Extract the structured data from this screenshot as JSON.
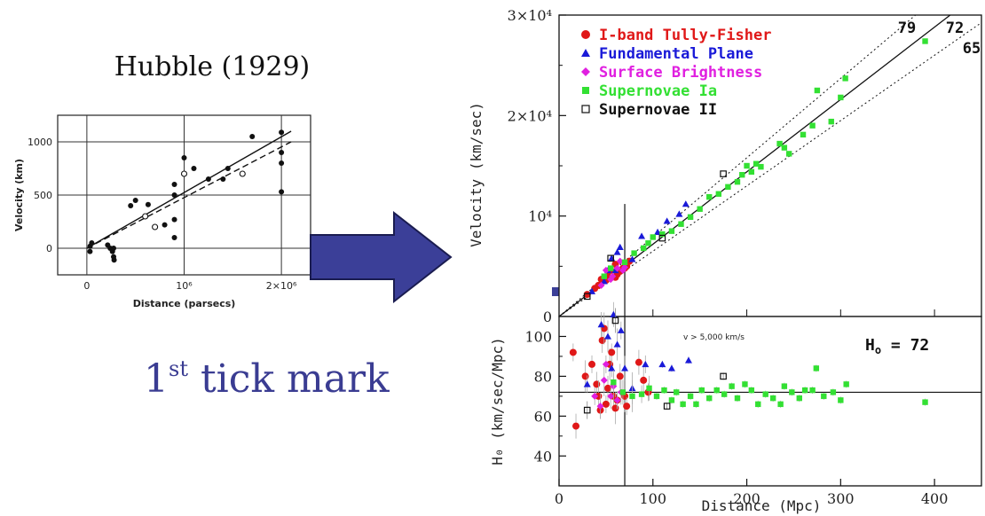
{
  "left_title": "Hubble (1929)",
  "caption": {
    "main": "1",
    "sup": "st",
    "rest": " tick mark"
  },
  "colors": {
    "caption": "#3a3c92",
    "arrow": "#3b3f98",
    "arrow_border": "#1a1c50",
    "red": "#e01818",
    "blue": "#1a1ad8",
    "magenta": "#e020e0",
    "green": "#33e033",
    "black": "#111111"
  },
  "chart_data": [
    {
      "id": "hubble-1929",
      "type": "scatter",
      "xlabel": "Distance (parsecs)",
      "ylabel": "Velocity (km)",
      "xlim": [
        -300000,
        2300000
      ],
      "ylim": [
        -250,
        1250
      ],
      "xticks": [
        {
          "v": 0,
          "label": "0"
        },
        {
          "v": 1000000,
          "label": "10⁶"
        },
        {
          "v": 2000000,
          "label": "2×10⁶"
        }
      ],
      "yticks": [
        {
          "v": 0,
          "label": "0"
        },
        {
          "v": 500,
          "label": "500"
        },
        {
          "v": 1000,
          "label": "1000"
        }
      ],
      "points_filled": [
        [
          32000,
          -30
        ],
        [
          34000,
          20
        ],
        [
          50000,
          50
        ],
        [
          214000,
          30
        ],
        [
          240000,
          0
        ],
        [
          263000,
          -30
        ],
        [
          275000,
          0
        ],
        [
          275000,
          -80
        ],
        [
          280000,
          -110
        ],
        [
          450000,
          400
        ],
        [
          500000,
          450
        ],
        [
          630000,
          410
        ],
        [
          800000,
          220
        ],
        [
          900000,
          270
        ],
        [
          900000,
          600
        ],
        [
          900000,
          500
        ],
        [
          900000,
          100
        ],
        [
          1000000,
          850
        ],
        [
          1100000,
          750
        ],
        [
          1250000,
          650
        ],
        [
          1400000,
          650
        ],
        [
          1450000,
          750
        ],
        [
          1700000,
          1050
        ],
        [
          2000000,
          900
        ],
        [
          2000000,
          1090
        ],
        [
          2000000,
          800
        ],
        [
          2000000,
          530
        ]
      ],
      "points_open": [
        [
          600000,
          300
        ],
        [
          700000,
          200
        ],
        [
          1000000,
          700
        ],
        [
          1600000,
          700
        ]
      ],
      "fits": [
        {
          "style": "solid",
          "x": [
            0,
            2100000
          ],
          "y": [
            0,
            1100
          ]
        },
        {
          "style": "dashed",
          "x": [
            0,
            2100000
          ],
          "y": [
            0,
            1000
          ]
        }
      ]
    },
    {
      "id": "velocity-distance",
      "type": "scatter",
      "ylabel": "Velocity (km/sec)",
      "xlim": [
        0,
        450
      ],
      "ylim": [
        0,
        30000
      ],
      "yticks": [
        {
          "v": 0,
          "label": "0"
        },
        {
          "v": 10000,
          "label": "10⁴"
        },
        {
          "v": 20000,
          "label": "2×10⁴"
        },
        {
          "v": 30000,
          "label": "3×10⁴"
        }
      ],
      "vline": 70,
      "legend": [
        {
          "label": "I-band Tully-Fisher",
          "marker": "circle",
          "color": "#e01818"
        },
        {
          "label": "Fundamental Plane",
          "marker": "triangle",
          "color": "#1a1ad8"
        },
        {
          "label": "Surface Brightness",
          "marker": "diamond",
          "color": "#e020e0"
        },
        {
          "label": "Supernovae Ia",
          "marker": "square",
          "color": "#33e033"
        },
        {
          "label": "Supernovae II",
          "marker": "open-square",
          "color": "#111111"
        }
      ],
      "lines": [
        {
          "style": "solid",
          "label": "72",
          "slope": 72
        },
        {
          "style": "dotted",
          "label": "79",
          "slope": 79
        },
        {
          "style": "dotted",
          "label": "65",
          "slope": 65
        }
      ],
      "series": [
        {
          "name": "I-band Tully-Fisher",
          "points": [
            [
              30,
              2200
            ],
            [
              38,
              2800
            ],
            [
              42,
              3100
            ],
            [
              45,
              3700
            ],
            [
              50,
              3600
            ],
            [
              52,
              4000
            ],
            [
              55,
              4600
            ],
            [
              60,
              5200
            ],
            [
              60,
              3900
            ],
            [
              62,
              4200
            ],
            [
              65,
              4500
            ],
            [
              68,
              4800
            ],
            [
              70,
              4800
            ],
            [
              72,
              5000
            ],
            [
              75,
              5500
            ]
          ]
        },
        {
          "name": "Fundamental Plane",
          "points": [
            [
              35,
              2500
            ],
            [
              48,
              3500
            ],
            [
              52,
              4600
            ],
            [
              56,
              5800
            ],
            [
              60,
              4600
            ],
            [
              62,
              6400
            ],
            [
              65,
              6900
            ],
            [
              78,
              5700
            ],
            [
              88,
              8000
            ],
            [
              105,
              8400
            ],
            [
              115,
              9500
            ],
            [
              128,
              10200
            ],
            [
              135,
              11200
            ]
          ]
        },
        {
          "name": "Surface Brightness",
          "points": [
            [
              45,
              3100
            ],
            [
              50,
              4600
            ],
            [
              55,
              3700
            ],
            [
              57,
              4000
            ],
            [
              62,
              4800
            ],
            [
              65,
              5500
            ],
            [
              68,
              4600
            ],
            [
              70,
              4900
            ]
          ]
        },
        {
          "name": "Supernovae Ia",
          "points": [
            [
              48,
              4000
            ],
            [
              55,
              4800
            ],
            [
              70,
              5400
            ],
            [
              80,
              6300
            ],
            [
              90,
              6800
            ],
            [
              95,
              7300
            ],
            [
              100,
              7900
            ],
            [
              110,
              8200
            ],
            [
              120,
              8500
            ],
            [
              130,
              9200
            ],
            [
              140,
              9900
            ],
            [
              150,
              10700
            ],
            [
              160,
              11900
            ],
            [
              170,
              12200
            ],
            [
              180,
              12900
            ],
            [
              190,
              13400
            ],
            [
              195,
              14100
            ],
            [
              200,
              15000
            ],
            [
              205,
              14400
            ],
            [
              210,
              15200
            ],
            [
              215,
              14900
            ],
            [
              235,
              17200
            ],
            [
              240,
              16800
            ],
            [
              245,
              16200
            ],
            [
              260,
              18100
            ],
            [
              270,
              19000
            ],
            [
              275,
              22500
            ],
            [
              290,
              19400
            ],
            [
              300,
              21800
            ],
            [
              305,
              23700
            ],
            [
              390,
              27400
            ]
          ]
        },
        {
          "name": "Supernovae II",
          "points": [
            [
              30,
              2000
            ],
            [
              55,
              5800
            ],
            [
              110,
              7800
            ],
            [
              175,
              14200
            ]
          ]
        }
      ]
    },
    {
      "id": "h0-distance",
      "type": "scatter",
      "xlabel": "Distance (Mpc)",
      "ylabel": "H₀ (km/sec/Mpc)",
      "xlim": [
        0,
        450
      ],
      "ylim": [
        25,
        110
      ],
      "xticks": [
        {
          "v": 0,
          "label": "0"
        },
        {
          "v": 100,
          "label": "100"
        },
        {
          "v": 200,
          "label": "200"
        },
        {
          "v": 300,
          "label": "300"
        },
        {
          "v": 400,
          "label": "400"
        }
      ],
      "yticks": [
        {
          "v": 40,
          "label": "40"
        },
        {
          "v": 60,
          "label": "60"
        },
        {
          "v": 80,
          "label": "80"
        },
        {
          "v": 100,
          "label": "100"
        }
      ],
      "annotation": "v > 5,000 km/s",
      "h0_label": {
        "main": "H",
        "sub": "o",
        "rest": " = 72"
      },
      "hline": 72,
      "vline": 70,
      "series": [
        {
          "name": "I-band Tully-Fisher",
          "points": [
            [
              15,
              92
            ],
            [
              18,
              55
            ],
            [
              28,
              80
            ],
            [
              35,
              86
            ],
            [
              40,
              76
            ],
            [
              42,
              70
            ],
            [
              44,
              63
            ],
            [
              46,
              98
            ],
            [
              48,
              104
            ],
            [
              50,
              66
            ],
            [
              52,
              74
            ],
            [
              54,
              86
            ],
            [
              56,
              92
            ],
            [
              58,
              70
            ],
            [
              60,
              64
            ],
            [
              62,
              68
            ],
            [
              65,
              80
            ],
            [
              70,
              70
            ],
            [
              72,
              65
            ],
            [
              85,
              87
            ],
            [
              90,
              78
            ],
            [
              95,
              72
            ]
          ]
        },
        {
          "name": "Fundamental Plane",
          "points": [
            [
              30,
              76
            ],
            [
              45,
              106
            ],
            [
              52,
              100
            ],
            [
              56,
              84
            ],
            [
              58,
              111
            ],
            [
              62,
              96
            ],
            [
              66,
              103
            ],
            [
              70,
              84
            ],
            [
              78,
              74
            ],
            [
              92,
              86
            ],
            [
              110,
              86
            ],
            [
              120,
              84
            ],
            [
              138,
              88
            ]
          ]
        },
        {
          "name": "Surface Brightness",
          "points": [
            [
              38,
              70
            ],
            [
              44,
              65
            ],
            [
              48,
              78
            ],
            [
              50,
              86
            ],
            [
              55,
              70
            ],
            [
              58,
              75
            ],
            [
              62,
              68
            ],
            [
              66,
              72
            ]
          ]
        },
        {
          "name": "Supernovae Ia",
          "points": [
            [
              58,
              77
            ],
            [
              68,
              72
            ],
            [
              78,
              70
            ],
            [
              88,
              71
            ],
            [
              96,
              74
            ],
            [
              104,
              70
            ],
            [
              112,
              73
            ],
            [
              120,
              68
            ],
            [
              125,
              72
            ],
            [
              132,
              66
            ],
            [
              140,
              70
            ],
            [
              146,
              66
            ],
            [
              152,
              73
            ],
            [
              160,
              69
            ],
            [
              168,
              73
            ],
            [
              176,
              71
            ],
            [
              184,
              75
            ],
            [
              190,
              69
            ],
            [
              198,
              76
            ],
            [
              205,
              73
            ],
            [
              212,
              66
            ],
            [
              220,
              71
            ],
            [
              228,
              69
            ],
            [
              236,
              66
            ],
            [
              240,
              75
            ],
            [
              248,
              72
            ],
            [
              256,
              69
            ],
            [
              262,
              73
            ],
            [
              270,
              73
            ],
            [
              274,
              84
            ],
            [
              282,
              70
            ],
            [
              292,
              72
            ],
            [
              300,
              68
            ],
            [
              306,
              76
            ],
            [
              390,
              67
            ]
          ]
        },
        {
          "name": "Supernovae II",
          "points": [
            [
              30,
              63
            ],
            [
              60,
              108
            ],
            [
              115,
              65
            ],
            [
              175,
              80
            ]
          ]
        }
      ]
    }
  ]
}
